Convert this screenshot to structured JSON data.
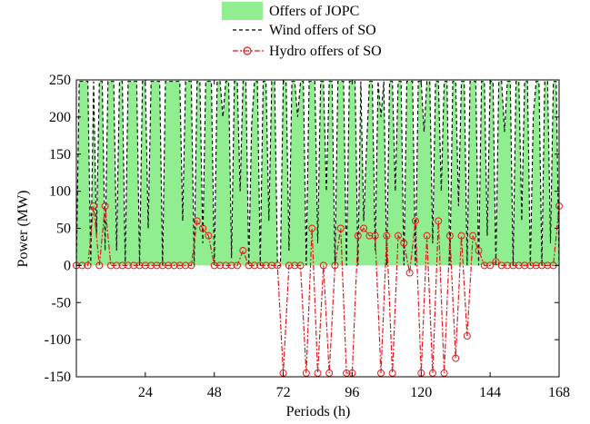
{
  "chart_data": {
    "type": "line",
    "title": "",
    "xlabel": "Periods (h)",
    "ylabel": "Power (MW)",
    "xlim": [
      0,
      168
    ],
    "ylim": [
      -150,
      250
    ],
    "xticks": [
      24,
      48,
      72,
      96,
      120,
      144,
      168
    ],
    "yticks": [
      -150,
      -100,
      -50,
      0,
      50,
      100,
      150,
      200,
      250
    ],
    "grid": false,
    "legend_position": "top-center",
    "colors": {
      "jopc_fill": "#90EE90",
      "wind_line": "#000000",
      "hydro_line": "#E31A1C"
    },
    "series": [
      {
        "name": "Offers of JOPC",
        "style": "area",
        "x": [
          0,
          1,
          2,
          3,
          4,
          5,
          6,
          7,
          8,
          9,
          10,
          11,
          12,
          13,
          14,
          15,
          16,
          17,
          18,
          19,
          20,
          21,
          22,
          23,
          24,
          25,
          26,
          27,
          28,
          29,
          30,
          31,
          32,
          33,
          34,
          35,
          36,
          37,
          38,
          39,
          40,
          41,
          42,
          43,
          44,
          45,
          46,
          47,
          48,
          49,
          50,
          51,
          52,
          53,
          54,
          55,
          56,
          57,
          58,
          59,
          60,
          61,
          62,
          63,
          64,
          65,
          66,
          67,
          68,
          69,
          70,
          71,
          72,
          73,
          74,
          75,
          76,
          77,
          78,
          79,
          80,
          81,
          82,
          83,
          84,
          85,
          86,
          87,
          88,
          89,
          90,
          91,
          92,
          93,
          94,
          95,
          96,
          97,
          98,
          99,
          100,
          101,
          102,
          103,
          104,
          105,
          106,
          107,
          108,
          109,
          110,
          111,
          112,
          113,
          114,
          115,
          116,
          117,
          118,
          119,
          120,
          121,
          122,
          123,
          124,
          125,
          126,
          127,
          128,
          129,
          130,
          131,
          132,
          133,
          134,
          135,
          136,
          137,
          138,
          139,
          140,
          141,
          142,
          143,
          144,
          145,
          146,
          147,
          148,
          149,
          150,
          151,
          152,
          153,
          154,
          155,
          156,
          157,
          158,
          159,
          160,
          161,
          162,
          163,
          164,
          165,
          166,
          167,
          168
        ],
        "values": [
          0,
          248,
          248,
          248,
          248,
          0,
          248,
          40,
          248,
          248,
          20,
          248,
          248,
          248,
          20,
          248,
          248,
          0,
          248,
          248,
          248,
          248,
          0,
          248,
          248,
          50,
          248,
          248,
          248,
          248,
          0,
          248,
          248,
          248,
          248,
          248,
          248,
          60,
          248,
          248,
          248,
          0,
          248,
          248,
          30,
          248,
          248,
          248,
          0,
          248,
          248,
          200,
          248,
          248,
          10,
          248,
          248,
          100,
          248,
          248,
          0,
          190,
          248,
          248,
          0,
          248,
          248,
          60,
          248,
          248,
          0,
          0,
          248,
          248,
          20,
          248,
          248,
          200,
          248,
          248,
          0,
          248,
          248,
          248,
          30,
          248,
          248,
          100,
          248,
          248,
          0,
          248,
          248,
          248,
          0,
          248,
          248,
          248,
          0,
          248,
          60,
          160,
          248,
          248,
          20,
          248,
          200,
          248,
          0,
          248,
          248,
          100,
          248,
          248,
          0,
          248,
          248,
          248,
          0,
          248,
          248,
          180,
          248,
          248,
          30,
          248,
          248,
          100,
          248,
          248,
          0,
          248,
          248,
          80,
          248,
          248,
          0,
          248,
          248,
          248,
          0,
          248,
          248,
          40,
          248,
          248,
          0,
          248,
          248,
          180,
          248,
          248,
          0,
          248,
          248,
          60,
          248,
          248,
          0,
          200,
          248,
          248,
          0,
          248,
          248,
          30,
          248,
          248,
          0
        ],
        "values_note": "JOPC offer fill approximated"
      },
      {
        "name": "Wind offers of SO",
        "style": "dashed",
        "x": [
          0,
          1,
          2,
          3,
          4,
          5,
          6,
          7,
          8,
          9,
          10,
          11,
          12,
          13,
          14,
          15,
          16,
          17,
          18,
          19,
          20,
          21,
          22,
          23,
          24,
          25,
          26,
          27,
          28,
          29,
          30,
          31,
          32,
          33,
          34,
          35,
          36,
          37,
          38,
          39,
          40,
          41,
          42,
          43,
          44,
          45,
          46,
          47,
          48,
          49,
          50,
          51,
          52,
          53,
          54,
          55,
          56,
          57,
          58,
          59,
          60,
          61,
          62,
          63,
          64,
          65,
          66,
          67,
          68,
          69,
          70,
          71,
          72,
          73,
          74,
          75,
          76,
          77,
          78,
          79,
          80,
          81,
          82,
          83,
          84,
          85,
          86,
          87,
          88,
          89,
          90,
          91,
          92,
          93,
          94,
          95,
          96,
          97,
          98,
          99,
          100,
          101,
          102,
          103,
          104,
          105,
          106,
          107,
          108,
          109,
          110,
          111,
          112,
          113,
          114,
          115,
          116,
          117,
          118,
          119,
          120,
          121,
          122,
          123,
          124,
          125,
          126,
          127,
          128,
          129,
          130,
          131,
          132,
          133,
          134,
          135,
          136,
          137,
          138,
          139,
          140,
          141,
          142,
          143,
          144,
          145,
          146,
          147,
          148,
          149,
          150,
          151,
          152,
          153,
          154,
          155,
          156,
          157,
          158,
          159,
          160,
          161,
          162,
          163,
          164,
          165,
          166,
          167,
          168
        ],
        "values": [
          0,
          248,
          248,
          248,
          248,
          0,
          248,
          40,
          248,
          248,
          20,
          248,
          248,
          248,
          20,
          248,
          248,
          0,
          248,
          248,
          248,
          248,
          0,
          248,
          248,
          50,
          248,
          248,
          248,
          248,
          0,
          248,
          248,
          248,
          248,
          248,
          248,
          60,
          248,
          248,
          248,
          0,
          248,
          248,
          30,
          248,
          248,
          248,
          0,
          248,
          248,
          200,
          248,
          248,
          10,
          248,
          248,
          100,
          248,
          248,
          0,
          190,
          248,
          248,
          0,
          248,
          248,
          60,
          248,
          248,
          0,
          0,
          248,
          248,
          20,
          248,
          248,
          200,
          248,
          248,
          0,
          248,
          248,
          248,
          30,
          248,
          248,
          100,
          248,
          248,
          0,
          248,
          248,
          248,
          0,
          248,
          248,
          248,
          0,
          248,
          60,
          160,
          248,
          248,
          20,
          248,
          200,
          248,
          0,
          248,
          248,
          100,
          248,
          248,
          0,
          248,
          248,
          248,
          0,
          248,
          248,
          180,
          248,
          248,
          30,
          248,
          248,
          100,
          248,
          248,
          0,
          248,
          248,
          80,
          248,
          248,
          0,
          248,
          248,
          248,
          0,
          248,
          248,
          40,
          248,
          248,
          0,
          248,
          248,
          180,
          248,
          248,
          0,
          248,
          248,
          60,
          248,
          248,
          0,
          200,
          248,
          248,
          0,
          248,
          248,
          30,
          248,
          248,
          0
        ]
      },
      {
        "name": "Hydro offers of SO",
        "style": "dashdot-circle",
        "x": [
          0,
          2,
          4,
          6,
          8,
          10,
          12,
          14,
          16,
          18,
          20,
          22,
          24,
          26,
          28,
          30,
          32,
          34,
          36,
          38,
          40,
          42,
          44,
          46,
          48,
          50,
          52,
          54,
          56,
          58,
          60,
          62,
          64,
          66,
          68,
          70,
          72,
          74,
          76,
          78,
          80,
          82,
          84,
          86,
          88,
          90,
          92,
          94,
          96,
          98,
          100,
          102,
          104,
          106,
          108,
          110,
          112,
          114,
          116,
          118,
          120,
          122,
          124,
          126,
          128,
          130,
          132,
          134,
          136,
          138,
          140,
          142,
          144,
          146,
          148,
          150,
          152,
          154,
          156,
          158,
          160,
          162,
          164,
          166,
          168
        ],
        "values": [
          0,
          0,
          0,
          80,
          0,
          80,
          0,
          0,
          0,
          0,
          0,
          0,
          0,
          0,
          0,
          0,
          0,
          0,
          0,
          0,
          0,
          60,
          50,
          40,
          0,
          0,
          0,
          0,
          0,
          20,
          0,
          0,
          0,
          0,
          0,
          0,
          -145,
          0,
          0,
          0,
          -145,
          50,
          -145,
          0,
          -145,
          0,
          50,
          -145,
          -145,
          40,
          50,
          40,
          40,
          -145,
          40,
          -145,
          40,
          30,
          -10,
          60,
          -145,
          40,
          -145,
          60,
          -145,
          40,
          -125,
          40,
          -95,
          40,
          20,
          0,
          0,
          5,
          0,
          0,
          0,
          0,
          0,
          0,
          0,
          0,
          0,
          0,
          80
        ]
      }
    ]
  }
}
